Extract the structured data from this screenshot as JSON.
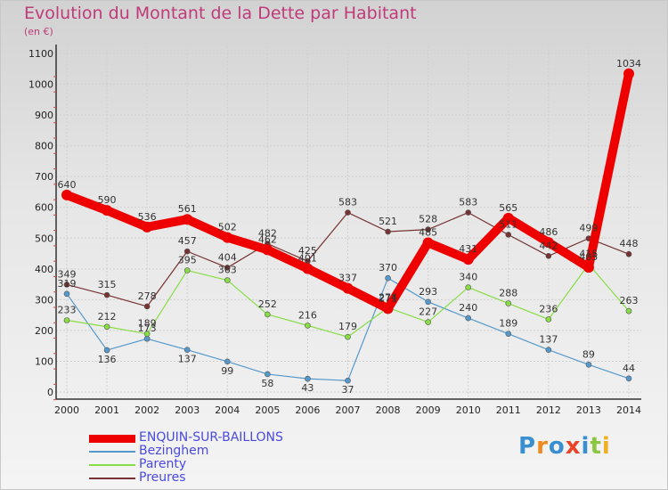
{
  "chart_data": {
    "type": "line",
    "title": "Evolution du Montant de la Dette par Habitant",
    "subtitle": "(en €)",
    "xlabel": "",
    "ylabel": "",
    "ylim": [
      0,
      1100
    ],
    "yticks": [
      "0",
      "100",
      "200",
      "300",
      "400",
      "500",
      "600",
      "700",
      "800",
      "900",
      "1000",
      "1100"
    ],
    "x": [
      "2000",
      "2001",
      "2002",
      "2003",
      "2004",
      "2005",
      "2006",
      "2007",
      "2008",
      "2009",
      "2010",
      "2011",
      "2012",
      "2013",
      "2014"
    ],
    "grid": true,
    "legend": "bottom-left",
    "series": [
      {
        "name": "ENQUIN-SUR-BAILLONS",
        "color": "#ee0000",
        "values": [
          640,
          590,
          536,
          561,
          502,
          462,
          401,
          337,
          271,
          485,
          431,
          565,
          486,
          405,
          1034
        ]
      },
      {
        "name": "Bezinghem",
        "color": "#5599cc",
        "values": [
          319,
          136,
          173,
          137,
          99,
          58,
          43,
          37,
          370,
          293,
          240,
          189,
          137,
          89,
          44
        ]
      },
      {
        "name": "Parenty",
        "color": "#88dd44",
        "values": [
          233,
          212,
          189,
          395,
          363,
          252,
          216,
          179,
          274,
          227,
          340,
          288,
          236,
          415,
          263
        ]
      },
      {
        "name": "Preures",
        "color": "#773333",
        "values": [
          349,
          315,
          278,
          457,
          404,
          482,
          425,
          583,
          521,
          528,
          583,
          511,
          442,
          499,
          448
        ]
      }
    ]
  },
  "logo": {
    "text": "Proxiti"
  }
}
